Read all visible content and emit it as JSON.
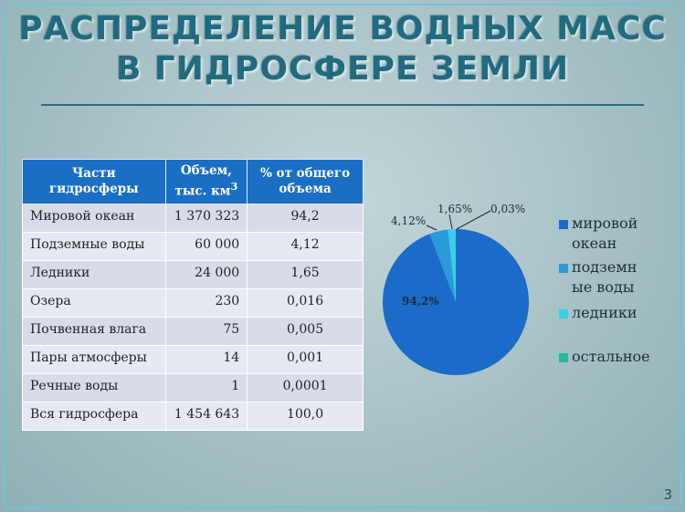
{
  "title_line1": "РАСПРЕДЕЛЕНИЕ ВОДНЫХ МАСС",
  "title_line2": "В ГИДРОСФЕРЕ ЗЕМЛИ",
  "table": {
    "headers": [
      "Части гидросферы",
      "Объем, тыс. км",
      "% от общего объема"
    ],
    "header_superscript": "3",
    "rows": [
      [
        "Мировой океан",
        "1 370 323",
        "94,2"
      ],
      [
        "Подземные воды",
        "60 000",
        "4,12"
      ],
      [
        "Ледники",
        "24 000",
        "1,65"
      ],
      [
        "Озера",
        "230",
        "0,016"
      ],
      [
        "Почвенная влага",
        "75",
        "0,005"
      ],
      [
        "Пары атмосферы",
        "14",
        "0,001"
      ],
      [
        "Речные воды",
        "1",
        "0,0001"
      ],
      [
        "Вся гидросфера",
        "1 454 643",
        "100,0"
      ]
    ]
  },
  "chart_data": {
    "type": "pie",
    "categories": [
      "мировой океан",
      "подземные воды",
      "ледники",
      "остальное"
    ],
    "values": [
      94.2,
      4.12,
      1.65,
      0.03
    ],
    "data_labels": [
      "94,2%",
      "4,12%",
      "1,65%",
      "0,03%"
    ],
    "colors": [
      "#1a6cc8",
      "#2a9ad8",
      "#38d0e8",
      "#2ab8a0"
    ],
    "legend_position": "right",
    "start_angle": "12 o'clock, clockwise"
  },
  "page_number": "3"
}
